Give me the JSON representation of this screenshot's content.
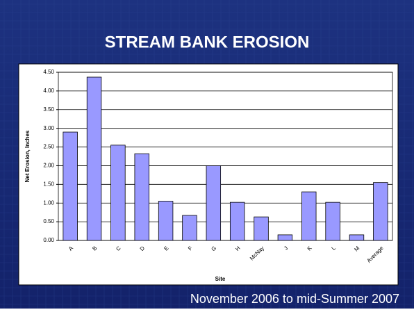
{
  "chart_data": {
    "type": "bar",
    "title": "STREAM BANK EROSION",
    "caption": "November 2006 to mid-Summer 2007",
    "x_label": "Site",
    "y_label": "Net Erosion, Inches",
    "categories": [
      "A",
      "B",
      "C",
      "D",
      "E",
      "F",
      "G",
      "H",
      "McNay",
      "J",
      "K",
      "L",
      "M",
      "Average"
    ],
    "values": [
      2.9,
      4.37,
      2.55,
      2.32,
      1.05,
      0.67,
      2.0,
      1.02,
      0.63,
      0.15,
      1.3,
      1.02,
      0.15,
      1.55
    ],
    "color": "#9999ff",
    "ylim": [
      0,
      4.5
    ],
    "yticks": [
      {
        "value": 0,
        "label": "0.00"
      },
      {
        "value": 0.5,
        "label": "0.50"
      },
      {
        "value": 1,
        "label": "1.00"
      },
      {
        "value": 1.5,
        "label": "1.50"
      },
      {
        "value": 2,
        "label": "2.00"
      },
      {
        "value": 2.5,
        "label": "2.50"
      },
      {
        "value": 3,
        "label": "3.00"
      },
      {
        "value": 3.5,
        "label": "3.50"
      },
      {
        "value": 4,
        "label": "4.00"
      },
      {
        "value": 4.5,
        "label": "4.50"
      }
    ],
    "grid": true
  }
}
